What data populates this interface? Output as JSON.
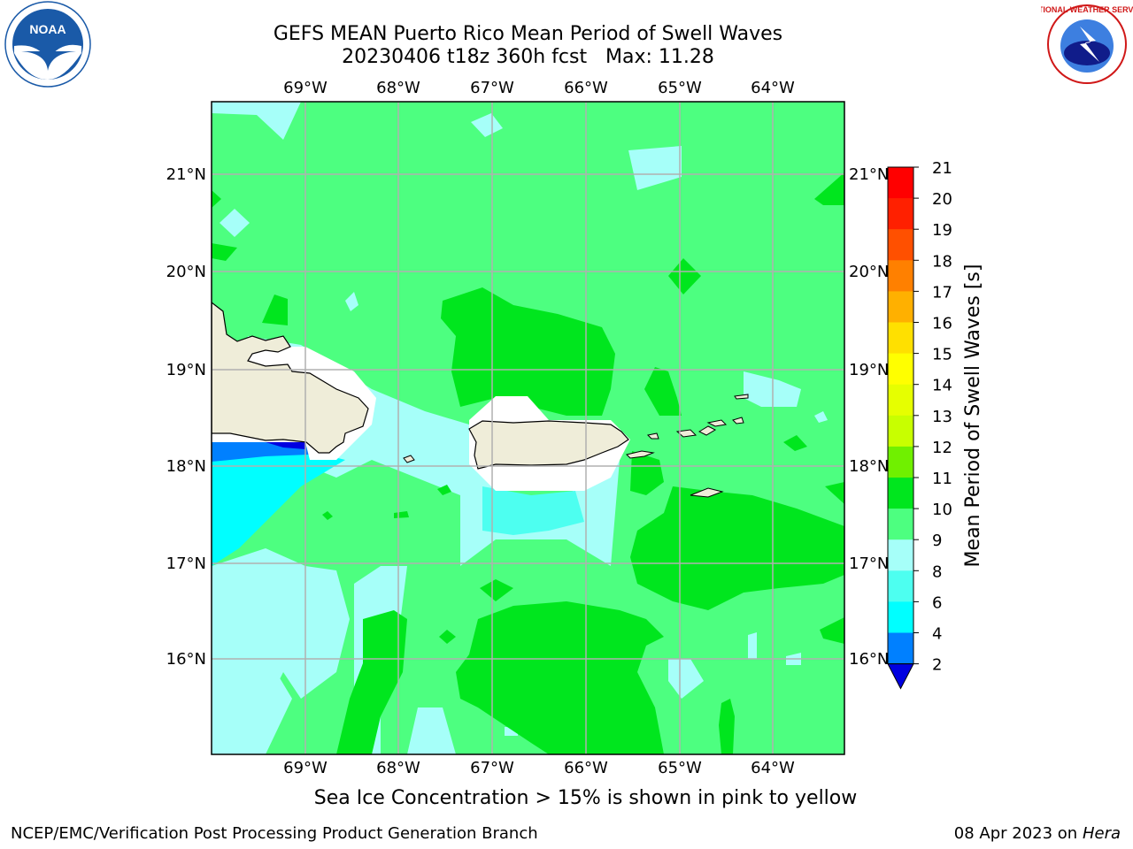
{
  "header": {
    "title_line1": "GEFS MEAN Puerto Rico Mean Period of Swell Waves",
    "title_line2": "20230406 t18z 360h fcst   Max: 11.28"
  },
  "logos": {
    "left": {
      "icon": "noaa-logo-icon",
      "text": "NOAA",
      "color": "#1a5aa8"
    },
    "right": {
      "icon": "nws-logo-icon",
      "text": "NATIONAL WEATHER SERVICE",
      "color": "#d01818"
    }
  },
  "map": {
    "lon_labels": [
      "69°W",
      "68°W",
      "67°W",
      "66°W",
      "65°W",
      "64°W"
    ],
    "lat_labels": [
      "21°N",
      "20°N",
      "19°N",
      "18°N",
      "17°N",
      "16°N"
    ],
    "colors": {
      "land": "#efedd9",
      "sea_pale_cyan": "#a6fff9",
      "sea_light_green": "#4dff80",
      "sea_green": "#00e61e",
      "sea_cyan": "#00e6ff",
      "sea_blue": "#0080ff",
      "grid": "#b0b0b0"
    }
  },
  "colorbar": {
    "label": "Mean Period of Swell Waves [s]",
    "ticks": [
      "21",
      "20",
      "19",
      "18",
      "17",
      "16",
      "15",
      "14",
      "13",
      "12",
      "11",
      "10",
      "9",
      "8",
      "6",
      "4",
      "2"
    ],
    "colors": [
      "#ff0000",
      "#ff2000",
      "#ff5000",
      "#ff8000",
      "#ffb000",
      "#ffe000",
      "#ffff00",
      "#e6ff00",
      "#c8ff00",
      "#70f000",
      "#00e61e",
      "#4dff80",
      "#a6fff9",
      "#4dfff0",
      "#00ffff",
      "#0080ff"
    ],
    "extend_color": "#0000e0"
  },
  "notes": {
    "sea_ice": "Sea Ice Concentration > 15% is shown in pink to yellow",
    "footer_left": "NCEP/EMC/Verification Post Processing Product Generation Branch",
    "footer_right_date": "08 Apr 2023 on ",
    "footer_right_host": "Hera"
  }
}
